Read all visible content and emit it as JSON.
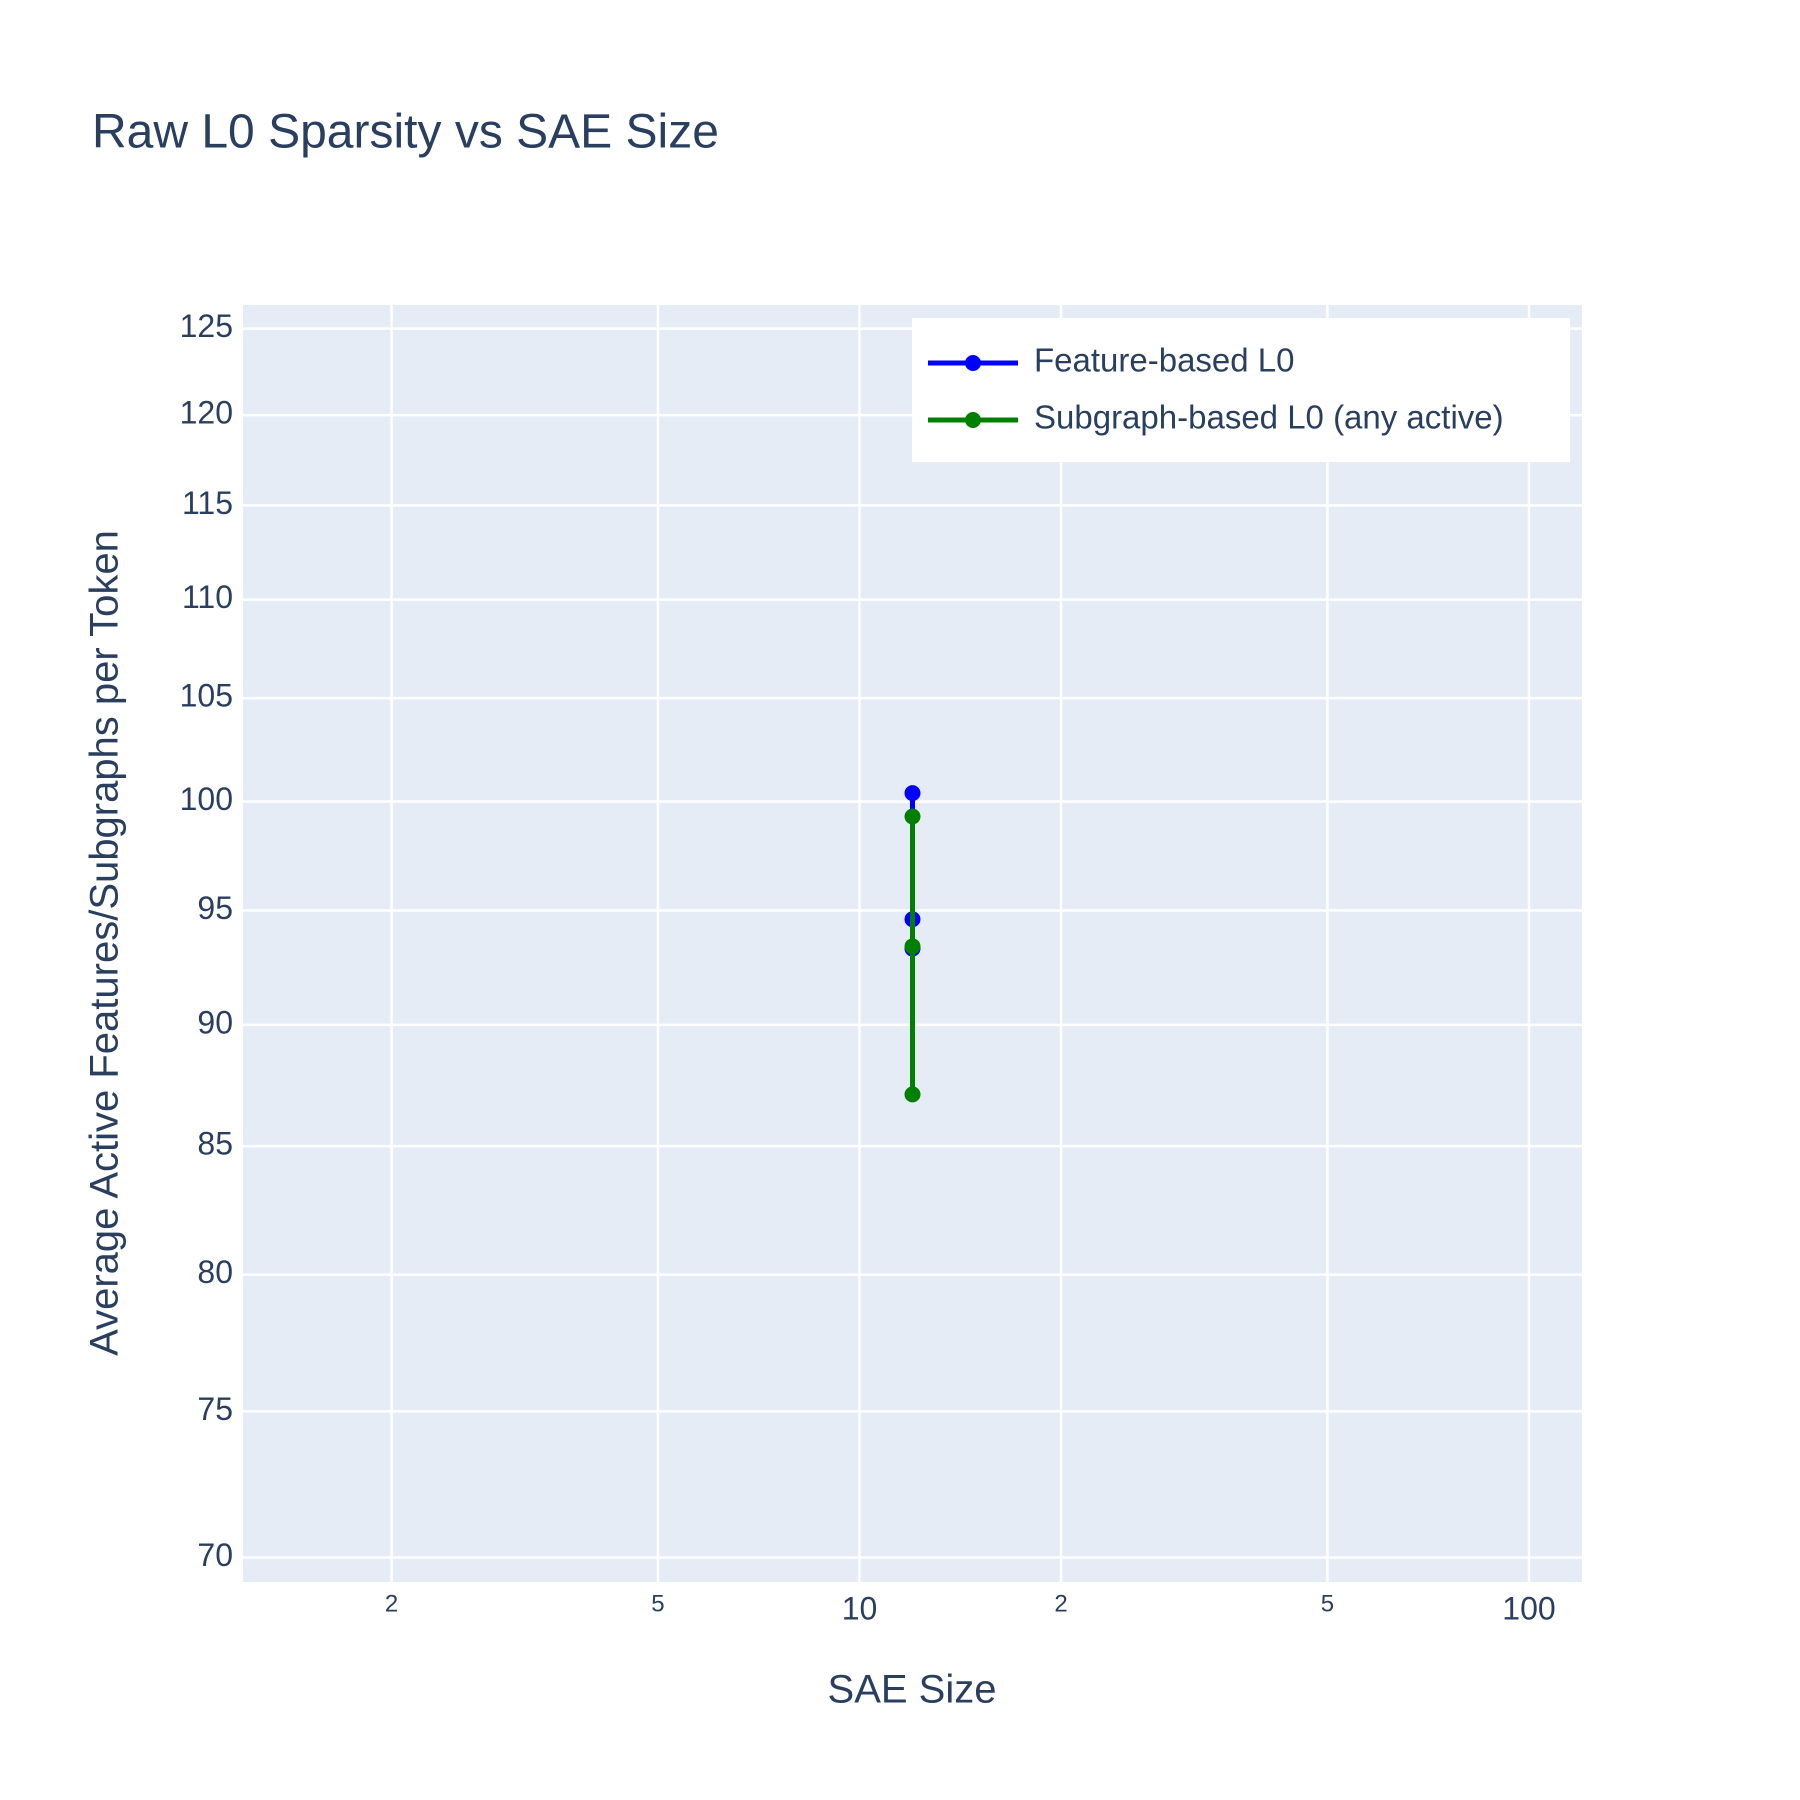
{
  "chart_data": {
    "type": "line",
    "title": "Raw L0 Sparsity vs SAE Size",
    "x_label": "SAE Size",
    "y_label": "Average Active Features/Subgraphs per Token",
    "x_log": true,
    "y_log": true,
    "grid": true,
    "legend_position": "top-right",
    "xlim": [
      1.2,
      120
    ],
    "ylim": [
      69.2,
      126.4
    ],
    "xticks": [
      2,
      5,
      10,
      {
        "value": 20,
        "label": "2"
      },
      {
        "value": 50,
        "label": "5"
      },
      100
    ],
    "yticks": [
      70,
      75,
      80,
      85,
      90,
      95,
      100,
      105,
      110,
      115,
      120,
      125
    ],
    "series": [
      {
        "name": "Feature-based L0",
        "color": "#0000ff",
        "x": [
          12,
          12,
          12
        ],
        "values": [
          100.4,
          94.6,
          93.3
        ]
      },
      {
        "name": "Subgraph-based L0 (any active)",
        "color": "#008000",
        "x": [
          12,
          12,
          12
        ],
        "values": [
          99.3,
          87.1,
          93.4
        ]
      }
    ]
  }
}
